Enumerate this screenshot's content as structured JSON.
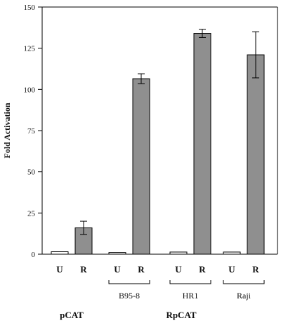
{
  "chart_data": {
    "type": "bar",
    "title": "",
    "xlabel": "",
    "ylabel": "Fold Activation",
    "ylim": [
      0,
      150
    ],
    "yticks": [
      0,
      25,
      50,
      75,
      100,
      125,
      150
    ],
    "grid": false,
    "colors": {
      "U": "#ffffff",
      "R": "#8f8f8f",
      "axis": "#000000"
    },
    "bars": [
      {
        "label": "U",
        "value": 1.5,
        "err": null
      },
      {
        "label": "R",
        "value": 16,
        "err": 4
      },
      {
        "label": "U",
        "value": 1,
        "err": null
      },
      {
        "label": "R",
        "value": 106.5,
        "err": 3
      },
      {
        "label": "U",
        "value": 1.3,
        "err": null
      },
      {
        "label": "R",
        "value": 134,
        "err": 2.5
      },
      {
        "label": "U",
        "value": 1.3,
        "err": null
      },
      {
        "label": "R",
        "value": 121,
        "err": 14
      }
    ],
    "groups": [
      "B95-8",
      "HR1",
      "Raji"
    ],
    "bottom_labels": [
      "pCAT",
      "RpCAT"
    ]
  }
}
